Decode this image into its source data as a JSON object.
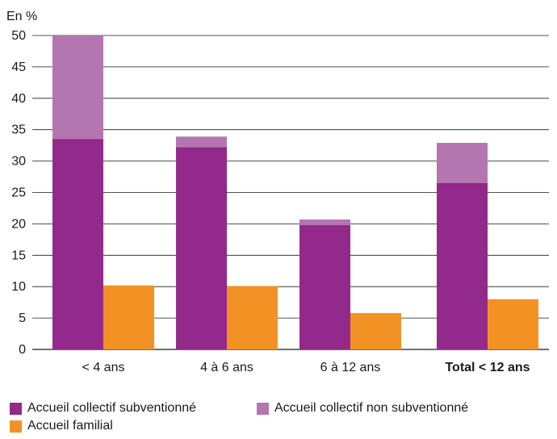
{
  "chart_data": {
    "type": "bar",
    "unit_label": "En %",
    "categories": [
      "< 4 ans",
      "4 à 6 ans",
      "6 à 12 ans",
      "Total < 12 ans"
    ],
    "category_bold": [
      false,
      false,
      false,
      true
    ],
    "ylim": [
      0,
      50
    ],
    "yticks": [
      0,
      5,
      10,
      15,
      20,
      25,
      30,
      35,
      40,
      45,
      50
    ],
    "grid": true,
    "stacked_series": [
      {
        "name": "Accueil collectif subventionné",
        "color": "#93298b",
        "values": [
          33.4,
          32.1,
          19.7,
          26.4
        ]
      },
      {
        "name": "Accueil collectif non subventionné",
        "color": "#b376b1",
        "values": [
          16.6,
          1.8,
          1.0,
          6.5
        ]
      }
    ],
    "side_series": [
      {
        "name": "Accueil familial",
        "color": "#f39224",
        "values": [
          10.2,
          10.1,
          5.8,
          8.0
        ]
      }
    ],
    "legend_position": "bottom"
  }
}
